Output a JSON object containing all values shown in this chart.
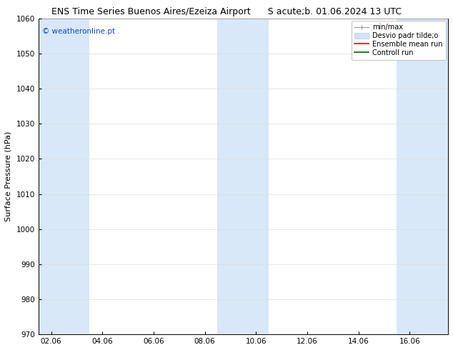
{
  "title_left": "ENS Time Series Buenos Aires/Ezeiza Airport",
  "title_right": "S acute;b. 01.06.2024 13 UTC",
  "ylabel": "Surface Pressure (hPa)",
  "ylim": [
    970,
    1060
  ],
  "yticks": [
    970,
    980,
    990,
    1000,
    1010,
    1020,
    1030,
    1040,
    1050,
    1060
  ],
  "xtick_labels": [
    "02.06",
    "04.06",
    "06.06",
    "08.06",
    "10.06",
    "12.06",
    "14.06",
    "16.06"
  ],
  "xtick_positions": [
    0,
    2,
    4,
    6,
    8,
    10,
    12,
    14
  ],
  "xlim": [
    -0.5,
    15.5
  ],
  "shaded_bands": [
    {
      "x_start": -0.5,
      "x_end": 0.5,
      "color": "#d8e8f8"
    },
    {
      "x_start": 0.5,
      "x_end": 1.5,
      "color": "#d8e8f8"
    },
    {
      "x_start": 6.5,
      "x_end": 7.5,
      "color": "#d8e8f8"
    },
    {
      "x_start": 7.5,
      "x_end": 8.5,
      "color": "#d8e8f8"
    },
    {
      "x_start": 13.5,
      "x_end": 14.5,
      "color": "#d8e8f8"
    },
    {
      "x_start": 14.5,
      "x_end": 15.5,
      "color": "#d8e8f8"
    }
  ],
  "watermark_text": "© weatheronline.pt",
  "watermark_color": "#1144cc",
  "legend_labels": [
    "min/max",
    "Desvio padr tilde;o",
    "Ensemble mean run",
    "Controll run"
  ],
  "legend_colors_line": [
    "#aaaaaa",
    "#c8dcf0",
    "red",
    "darkgreen"
  ],
  "bg_color": "#ffffff",
  "grid_color": "#dddddd",
  "title_fontsize": 9,
  "tick_fontsize": 7.5,
  "ylabel_fontsize": 8,
  "legend_fontsize": 7
}
